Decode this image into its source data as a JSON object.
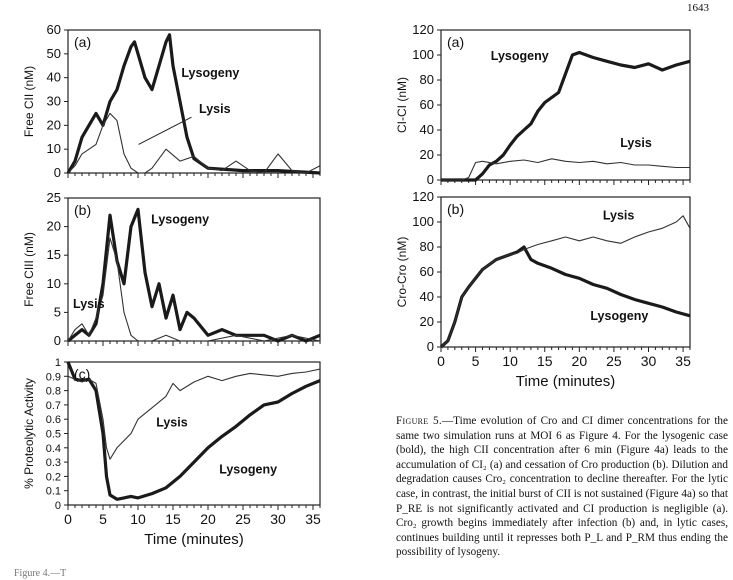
{
  "page_number": "1643",
  "caption": {
    "label": "Figure 5.",
    "text": "—Time evolution of Cro and CI dimer concentrations for the same two simulation runs at MOI 6 as Figure 4. For the lysogenic case (bold), the high CII concentration after 6 min (Figure 4a) leads to the accumulation of CI₂ (a) and cessation of Cro production (b). Dilution and degradation causes Cro₂ concentration to decline thereafter. For the lytic case, in contrast, the initial burst of CII is not sustained (Figure 4a) so that P_RE is not significantly activated and CI production is negligible (a). Cro₂ growth begins immediately after infection (b) and, in lytic cases, continues building until it represses both P_L and P_RM thus ending the possibility of lysogeny."
  },
  "footer_fragment": "Figure 4.—T",
  "colors": {
    "ink": "#111111",
    "bold_series": "#1a1a1a",
    "thin_series": "#333333",
    "frame": "#222222"
  },
  "chart_data": [
    {
      "panel": "(a)",
      "type": "line",
      "ylabel": "Free CII (nM)",
      "xlabel": "",
      "xlim": [
        0,
        36
      ],
      "ylim": [
        0,
        60
      ],
      "yticks": [
        0,
        10,
        20,
        30,
        40,
        50,
        60
      ],
      "annotations": [
        "Lysogeny",
        "Lysis"
      ],
      "series": [
        {
          "name": "Lysogeny",
          "style": "bold",
          "x": [
            0,
            1,
            2,
            3,
            4,
            5,
            6,
            7,
            8,
            9,
            9.5,
            10,
            11,
            12,
            13,
            14,
            14.5,
            15,
            16,
            17,
            18,
            20,
            25,
            30,
            36
          ],
          "y": [
            0,
            5,
            15,
            20,
            25,
            20,
            30,
            35,
            45,
            53,
            55,
            50,
            40,
            35,
            45,
            55,
            58,
            45,
            30,
            15,
            6,
            2,
            1,
            1,
            0
          ]
        },
        {
          "name": "Lysis",
          "style": "thin",
          "x": [
            0,
            1,
            2,
            3,
            4,
            5,
            6,
            7,
            8,
            9,
            10,
            11,
            12,
            14,
            16,
            18,
            20,
            22,
            24,
            26,
            28,
            30,
            32,
            34,
            36
          ],
          "y": [
            0,
            3,
            8,
            10,
            12,
            20,
            25,
            22,
            8,
            2,
            0,
            0,
            2,
            10,
            5,
            7,
            2,
            1,
            5,
            1,
            0,
            8,
            1,
            0,
            3
          ]
        }
      ]
    },
    {
      "panel": "(b)",
      "type": "line",
      "ylabel": "Free CIII (nM)",
      "xlabel": "",
      "xlim": [
        0,
        36
      ],
      "ylim": [
        0,
        25
      ],
      "yticks": [
        0,
        5,
        10,
        15,
        20,
        25
      ],
      "annotations": [
        "Lysogeny",
        "Lysis"
      ],
      "series": [
        {
          "name": "Lysogeny",
          "style": "bold",
          "x": [
            0,
            1,
            2,
            3,
            4,
            5,
            6,
            7,
            8,
            9,
            10,
            11,
            12,
            13,
            14,
            15,
            16,
            17,
            18,
            20,
            22,
            24,
            26,
            28,
            30,
            32,
            34,
            36
          ],
          "y": [
            0,
            1,
            2,
            1,
            3,
            10,
            22,
            14,
            10,
            20,
            23,
            12,
            6,
            10,
            4,
            8,
            2,
            5,
            4,
            1,
            2,
            1,
            1,
            1,
            0,
            1,
            0,
            1
          ]
        },
        {
          "name": "Lysis",
          "style": "thin",
          "x": [
            0,
            1,
            2,
            3,
            4,
            5,
            6,
            7,
            8,
            9,
            10,
            12,
            14,
            16,
            18,
            20,
            24,
            28,
            32,
            36
          ],
          "y": [
            0,
            2,
            3,
            1,
            4,
            8,
            18,
            14,
            5,
            1,
            0,
            0,
            1,
            0,
            0,
            0,
            1,
            0,
            1,
            0
          ]
        }
      ]
    },
    {
      "panel": "(c)",
      "type": "line",
      "ylabel": "% Proteolytic Activity",
      "xlabel": "Time  (minutes)",
      "xlim": [
        0,
        36
      ],
      "ylim": [
        0,
        1
      ],
      "yticks": [
        0,
        0.1,
        0.2,
        0.3,
        0.4,
        0.5,
        0.6,
        0.7,
        0.8,
        0.9,
        1
      ],
      "xticks": [
        0,
        5,
        10,
        15,
        20,
        25,
        30,
        35
      ],
      "annotations": [
        "Lysis",
        "Lysogeny"
      ],
      "series": [
        {
          "name": "Lysogeny",
          "style": "bold",
          "x": [
            0,
            1,
            2,
            3,
            4,
            5,
            5.5,
            6,
            7,
            8,
            9,
            10,
            12,
            14,
            16,
            18,
            20,
            22,
            24,
            26,
            28,
            30,
            32,
            34,
            36
          ],
          "y": [
            1,
            0.88,
            0.87,
            0.88,
            0.8,
            0.5,
            0.2,
            0.07,
            0.04,
            0.05,
            0.06,
            0.05,
            0.08,
            0.12,
            0.2,
            0.3,
            0.4,
            0.48,
            0.55,
            0.63,
            0.7,
            0.72,
            0.78,
            0.83,
            0.87
          ]
        },
        {
          "name": "Lysis",
          "style": "thin",
          "x": [
            0,
            1,
            2,
            3,
            4,
            5,
            5.5,
            6,
            7,
            8,
            9,
            10,
            12,
            14,
            15,
            16,
            18,
            20,
            22,
            24,
            26,
            28,
            30,
            32,
            34,
            36
          ],
          "y": [
            0.9,
            0.88,
            0.86,
            0.88,
            0.85,
            0.6,
            0.4,
            0.32,
            0.4,
            0.45,
            0.5,
            0.6,
            0.68,
            0.76,
            0.85,
            0.8,
            0.86,
            0.9,
            0.87,
            0.9,
            0.92,
            0.91,
            0.9,
            0.92,
            0.93,
            0.95
          ]
        }
      ]
    },
    {
      "panel": "(a)",
      "type": "line",
      "ylabel": "CI-CI (nM)",
      "xlabel": "",
      "xlim": [
        0,
        36
      ],
      "ylim": [
        0,
        120
      ],
      "yticks": [
        0,
        20,
        40,
        60,
        80,
        100,
        120
      ],
      "annotations": [
        "Lysogeny",
        "Lysis"
      ],
      "series": [
        {
          "name": "Lysogeny",
          "style": "bold",
          "x": [
            0,
            5,
            6,
            7,
            8,
            9,
            10,
            11,
            12,
            13,
            14,
            15,
            16,
            17,
            18,
            19,
            20,
            22,
            24,
            26,
            28,
            30,
            32,
            34,
            36
          ],
          "y": [
            0,
            0,
            5,
            12,
            15,
            20,
            28,
            35,
            40,
            45,
            55,
            62,
            66,
            70,
            85,
            100,
            102,
            98,
            95,
            92,
            90,
            93,
            88,
            92,
            95
          ]
        },
        {
          "name": "Lysis",
          "style": "thin",
          "x": [
            0,
            3,
            4,
            5,
            6,
            8,
            10,
            12,
            14,
            16,
            18,
            20,
            22,
            24,
            26,
            28,
            30,
            32,
            34,
            36
          ],
          "y": [
            0,
            0,
            2,
            14,
            15,
            13,
            15,
            16,
            14,
            17,
            15,
            14,
            15,
            13,
            14,
            12,
            12,
            11,
            10,
            10
          ]
        }
      ]
    },
    {
      "panel": "(b)",
      "type": "line",
      "ylabel": "Cro-Cro (nM)",
      "xlabel": "Time  (minutes)",
      "xlim": [
        0,
        36
      ],
      "ylim": [
        0,
        120
      ],
      "yticks": [
        0,
        20,
        40,
        60,
        80,
        100,
        120
      ],
      "xticks": [
        0,
        5,
        10,
        15,
        20,
        25,
        30,
        35
      ],
      "annotations": [
        "Lysis",
        "Lysogeny"
      ],
      "series": [
        {
          "name": "Lysogeny",
          "style": "bold",
          "x": [
            0,
            1,
            2,
            3,
            4,
            5,
            6,
            7,
            8,
            9,
            10,
            11,
            12,
            13,
            14,
            16,
            18,
            20,
            22,
            24,
            26,
            28,
            30,
            32,
            34,
            36
          ],
          "y": [
            0,
            5,
            20,
            40,
            48,
            55,
            62,
            66,
            70,
            72,
            74,
            76,
            80,
            70,
            67,
            63,
            58,
            55,
            50,
            47,
            42,
            38,
            35,
            32,
            28,
            25
          ]
        },
        {
          "name": "Lysis",
          "style": "thin",
          "x": [
            0,
            1,
            2,
            3,
            4,
            5,
            6,
            7,
            8,
            9,
            10,
            11,
            12,
            14,
            16,
            18,
            20,
            22,
            24,
            26,
            28,
            30,
            32,
            34,
            35,
            36
          ],
          "y": [
            0,
            5,
            20,
            40,
            48,
            55,
            62,
            66,
            70,
            72,
            74,
            75,
            78,
            82,
            85,
            88,
            85,
            88,
            85,
            83,
            88,
            92,
            95,
            100,
            105,
            95
          ]
        }
      ]
    }
  ]
}
